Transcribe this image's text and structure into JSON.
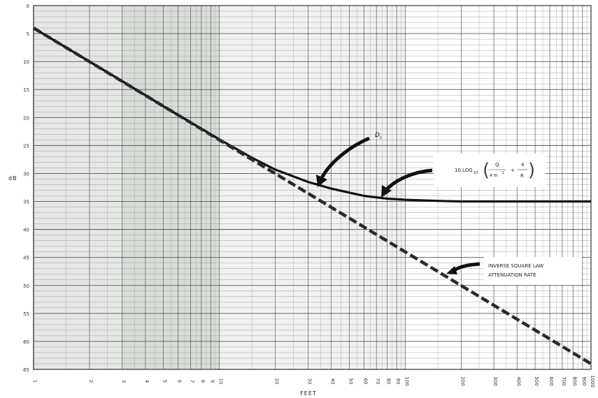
{
  "chart_data": {
    "type": "line",
    "xscale": "log",
    "xlabel": "FEET",
    "ylabel": "dB",
    "xlim": [
      1,
      1000
    ],
    "ylim": [
      0,
      65
    ],
    "y_inverted": true,
    "grid": true,
    "y_ticks": [
      "0",
      "5",
      "10",
      "15",
      "20",
      "25",
      "30",
      "35",
      "40",
      "45",
      "50",
      "55",
      "60",
      "65"
    ],
    "x_ticks": [
      {
        "v": 1,
        "label": "1"
      },
      {
        "v": 2,
        "label": "2"
      },
      {
        "v": 3,
        "label": "3"
      },
      {
        "v": 4,
        "label": "4"
      },
      {
        "v": 5,
        "label": "5"
      },
      {
        "v": 6,
        "label": "6"
      },
      {
        "v": 7,
        "label": "7"
      },
      {
        "v": 8,
        "label": "8"
      },
      {
        "v": 9,
        "label": "9"
      },
      {
        "v": 10,
        "label": "10"
      },
      {
        "v": 20,
        "label": "20"
      },
      {
        "v": 30,
        "label": "30"
      },
      {
        "v": 40,
        "label": "40"
      },
      {
        "v": 50,
        "label": "50"
      },
      {
        "v": 60,
        "label": "60"
      },
      {
        "v": 70,
        "label": "70"
      },
      {
        "v": 80,
        "label": "80"
      },
      {
        "v": 90,
        "label": "90"
      },
      {
        "v": 100,
        "label": "100"
      },
      {
        "v": 200,
        "label": "200"
      },
      {
        "v": 300,
        "label": "300"
      },
      {
        "v": 400,
        "label": "400"
      },
      {
        "v": 500,
        "label": "500"
      },
      {
        "v": 600,
        "label": "600"
      },
      {
        "v": 700,
        "label": "700"
      },
      {
        "v": 800,
        "label": "800"
      },
      {
        "v": 900,
        "label": "900"
      },
      {
        "v": 1000,
        "label": "1000"
      }
    ],
    "series": [
      {
        "style": "solid",
        "x": [
          1,
          2,
          3,
          5,
          8,
          10,
          15,
          20,
          30,
          40,
          60,
          80,
          100,
          150,
          200,
          300,
          500,
          1000
        ],
        "y": [
          4,
          10,
          13.5,
          18,
          22,
          23.9,
          27.2,
          29.3,
          31.5,
          32.7,
          34.0,
          34.5,
          34.7,
          34.9,
          35.0,
          35.0,
          35.0,
          35.0
        ]
      },
      {
        "style": "dashed",
        "x": [
          1,
          1000
        ],
        "y": [
          4,
          64
        ]
      }
    ],
    "annotations": {
      "dc_label": "D",
      "dc_sub": "c",
      "formula_prefix": "10 LOG",
      "formula_sub": "10",
      "formula_num1": "Q",
      "formula_den1": "4 πr",
      "formula_den1_sup": "2",
      "formula_plus": "+",
      "formula_num2": "4",
      "formula_den2": "R",
      "inverse_line1": "INVERSE SQUARE LAW",
      "inverse_line2": "ATTENUATION RATE"
    }
  }
}
